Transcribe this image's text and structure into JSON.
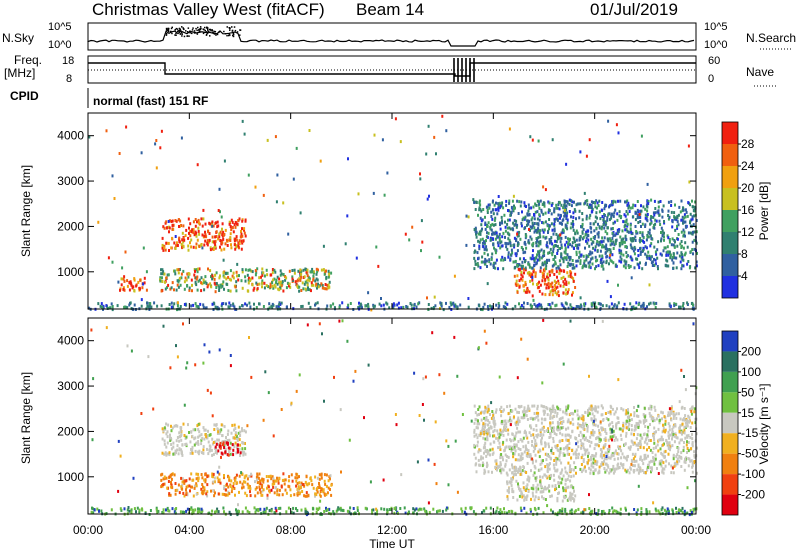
{
  "header": {
    "title": "Christmas Valley West (fitACF)",
    "beam": "Beam 14",
    "date": "01/Jul/2019"
  },
  "top_panels": {
    "nsky_label": "N.Sky",
    "nsky_ticks": [
      "10^5",
      "10^0"
    ],
    "nsearch_label": "N.Search",
    "nsearch_ticks": [
      "10^5",
      "10^0"
    ],
    "freq_label": "Freq.",
    "freq_unit": "[MHz]",
    "freq_ticks": [
      "18",
      "8"
    ],
    "nave_label": "Nave",
    "nave_ticks": [
      "60",
      "0"
    ],
    "cpid_label": "CPID",
    "cpid_value": "normal (fast) 151 RF"
  },
  "chart_data": [
    {
      "type": "heatmap",
      "name": "power",
      "ylabel": "Slant Range [km]",
      "ylim": [
        180,
        4500
      ],
      "yticks": [
        "1000",
        "2000",
        "3000",
        "4000"
      ],
      "xlim_hours": [
        0,
        24
      ],
      "colorbar_label": "Power [dB]",
      "colorbar_ticks": [
        "4",
        "8",
        "12",
        "16",
        "20",
        "24",
        "28"
      ],
      "colorbar_colors": [
        "#2030e0",
        "#3060a0",
        "#308070",
        "#40a060",
        "#c8c020",
        "#f0a010",
        "#f06010",
        "#f02010"
      ],
      "regions": [
        {
          "t": [
            2.9,
            6.2
          ],
          "r": [
            1500,
            2200
          ],
          "level": "high"
        },
        {
          "t": [
            2.8,
            9.6
          ],
          "r": [
            600,
            1100
          ],
          "level": "mid"
        },
        {
          "t": [
            1.2,
            2.3
          ],
          "r": [
            600,
            950
          ],
          "level": "high"
        },
        {
          "t": [
            16.8,
            19.2
          ],
          "r": [
            500,
            1100
          ],
          "level": "high"
        },
        {
          "t": [
            15.2,
            24.0
          ],
          "r": [
            1100,
            2600
          ],
          "level": "low"
        },
        {
          "t": [
            0.0,
            24.0
          ],
          "r": [
            200,
            350
          ],
          "level": "low"
        }
      ]
    },
    {
      "type": "heatmap",
      "name": "velocity",
      "ylabel": "Slant Range [km]",
      "ylim": [
        180,
        4500
      ],
      "yticks": [
        "1000",
        "2000",
        "3000",
        "4000"
      ],
      "xlim_hours": [
        0,
        24
      ],
      "xticks": [
        "00:00",
        "04:00",
        "08:00",
        "12:00",
        "16:00",
        "20:00",
        "00:00"
      ],
      "xlabel": "Time UT",
      "colorbar_label": "Velocity [m s⁻¹]",
      "colorbar_ticks": [
        "200",
        "100",
        "50",
        "15",
        "-15",
        "-50",
        "-100",
        "-200"
      ],
      "colorbar_colors": [
        "#2040c0",
        "#2a7060",
        "#40a050",
        "#70c040",
        "#c8c8c0",
        "#f0b020",
        "#f08010",
        "#f04010",
        "#e00010"
      ],
      "regions": [
        {
          "t": [
            2.9,
            6.2
          ],
          "r": [
            1500,
            2200
          ],
          "level": "grey"
        },
        {
          "t": [
            5.0,
            6.0
          ],
          "r": [
            1500,
            1800
          ],
          "level": "red"
        },
        {
          "t": [
            2.8,
            9.6
          ],
          "r": [
            600,
            1100
          ],
          "level": "orange"
        },
        {
          "t": [
            15.2,
            24.0
          ],
          "r": [
            1100,
            2600
          ],
          "level": "grey"
        },
        {
          "t": [
            16.5,
            19.2
          ],
          "r": [
            500,
            1100
          ],
          "level": "grey"
        },
        {
          "t": [
            0.0,
            24.0
          ],
          "r": [
            200,
            350
          ],
          "level": "green"
        }
      ]
    }
  ]
}
